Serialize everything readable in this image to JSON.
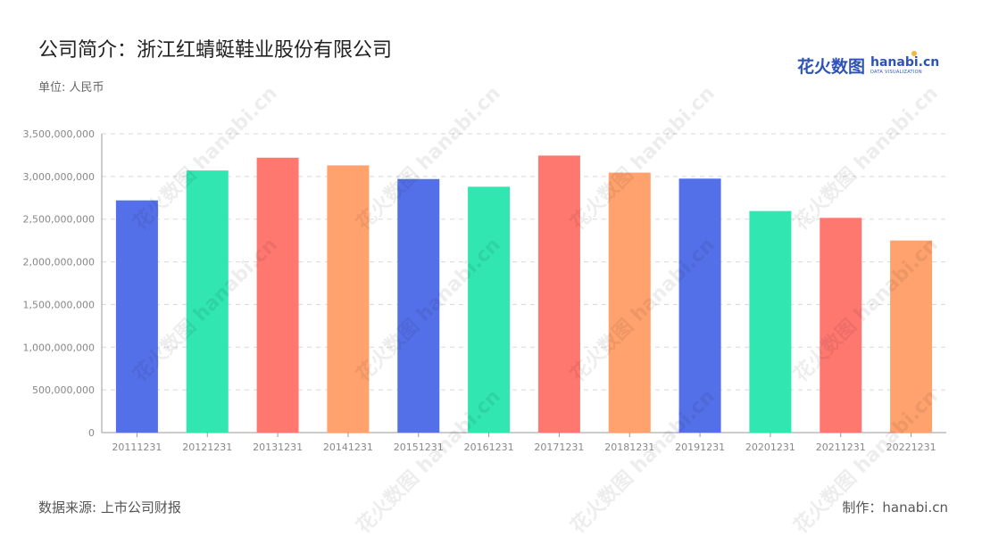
{
  "header": {
    "title": "公司简介：浙江红蜻蜓鞋业股份有限公司",
    "unit": "单位: 人民币"
  },
  "logo": {
    "cn": "花火数图",
    "en": "hanabi.cn",
    "sub": "DATA VISUALIZATION"
  },
  "footer": {
    "source": "数据来源: 上市公司财报",
    "maker": "制作：hanabi.cn"
  },
  "watermark": "花火数图 hanabi.cn",
  "chart_data": {
    "type": "bar",
    "categories": [
      "20111231",
      "20121231",
      "20131231",
      "20141231",
      "20151231",
      "20161231",
      "20171231",
      "20181231",
      "20191231",
      "20201231",
      "20211231",
      "20221231"
    ],
    "values": [
      2720000000,
      3070000000,
      3220000000,
      3130000000,
      2970000000,
      2880000000,
      3245000000,
      3045000000,
      2975000000,
      2595000000,
      2515000000,
      2250000000
    ],
    "bar_colors": [
      "#5470e8",
      "#32e6b1",
      "#ff7870",
      "#ffa26e",
      "#5470e8",
      "#32e6b1",
      "#ff7870",
      "#ffa26e",
      "#5470e8",
      "#32e6b1",
      "#ff7870",
      "#ffa26e"
    ],
    "ylim": [
      0,
      3500000000
    ],
    "yticks": [
      0,
      500000000,
      1000000000,
      1500000000,
      2000000000,
      2500000000,
      3000000000,
      3500000000
    ],
    "ytick_labels": [
      "0",
      "500,000,000",
      "1,000,000,000",
      "1,500,000,000",
      "2,000,000,000",
      "2,500,000,000",
      "3,000,000,000",
      "3,500,000,000"
    ],
    "grid": true,
    "title": "",
    "xlabel": "",
    "ylabel": ""
  }
}
